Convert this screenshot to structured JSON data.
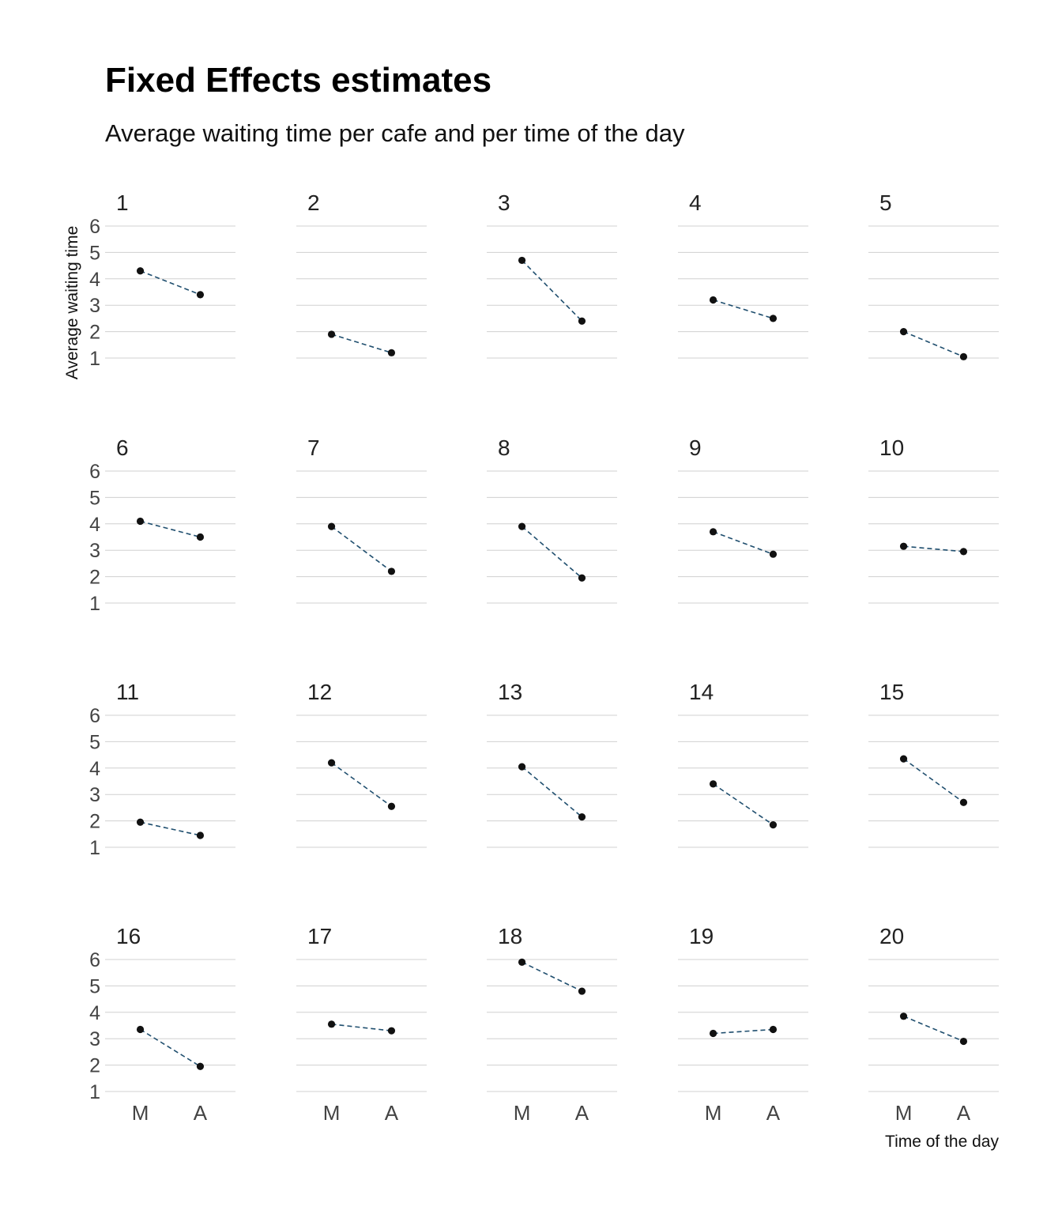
{
  "chart_data": {
    "type": "line",
    "title": "Fixed Effects estimates",
    "subtitle": "Average waiting time per cafe and per time of the day",
    "xlabel": "Time of the day",
    "ylabel": "Average waiting time",
    "categories": [
      "M",
      "A"
    ],
    "y_ticks": [
      1,
      2,
      3,
      4,
      5,
      6
    ],
    "ylim": [
      0.7,
      6.3
    ],
    "grid": true,
    "facets": {
      "rows": 4,
      "cols": 5
    },
    "line_color": "#1f4e6e",
    "point_color": "#111111",
    "panels": [
      {
        "label": "1",
        "values": [
          4.3,
          3.4
        ]
      },
      {
        "label": "2",
        "values": [
          1.9,
          1.2
        ]
      },
      {
        "label": "3",
        "values": [
          4.7,
          2.4
        ]
      },
      {
        "label": "4",
        "values": [
          3.2,
          2.5
        ]
      },
      {
        "label": "5",
        "values": [
          2.0,
          1.05
        ]
      },
      {
        "label": "6",
        "values": [
          4.1,
          3.5
        ]
      },
      {
        "label": "7",
        "values": [
          3.9,
          2.2
        ]
      },
      {
        "label": "8",
        "values": [
          3.9,
          1.95
        ]
      },
      {
        "label": "9",
        "values": [
          3.7,
          2.85
        ]
      },
      {
        "label": "10",
        "values": [
          3.15,
          2.95
        ]
      },
      {
        "label": "11",
        "values": [
          1.95,
          1.45
        ]
      },
      {
        "label": "12",
        "values": [
          4.2,
          2.55
        ]
      },
      {
        "label": "13",
        "values": [
          4.05,
          2.15
        ]
      },
      {
        "label": "14",
        "values": [
          3.4,
          1.85
        ]
      },
      {
        "label": "15",
        "values": [
          4.35,
          2.7
        ]
      },
      {
        "label": "16",
        "values": [
          3.35,
          1.95
        ]
      },
      {
        "label": "17",
        "values": [
          3.55,
          3.3
        ]
      },
      {
        "label": "18",
        "values": [
          5.9,
          4.8
        ]
      },
      {
        "label": "19",
        "values": [
          3.2,
          3.35
        ]
      },
      {
        "label": "20",
        "values": [
          3.85,
          2.9
        ]
      }
    ]
  }
}
